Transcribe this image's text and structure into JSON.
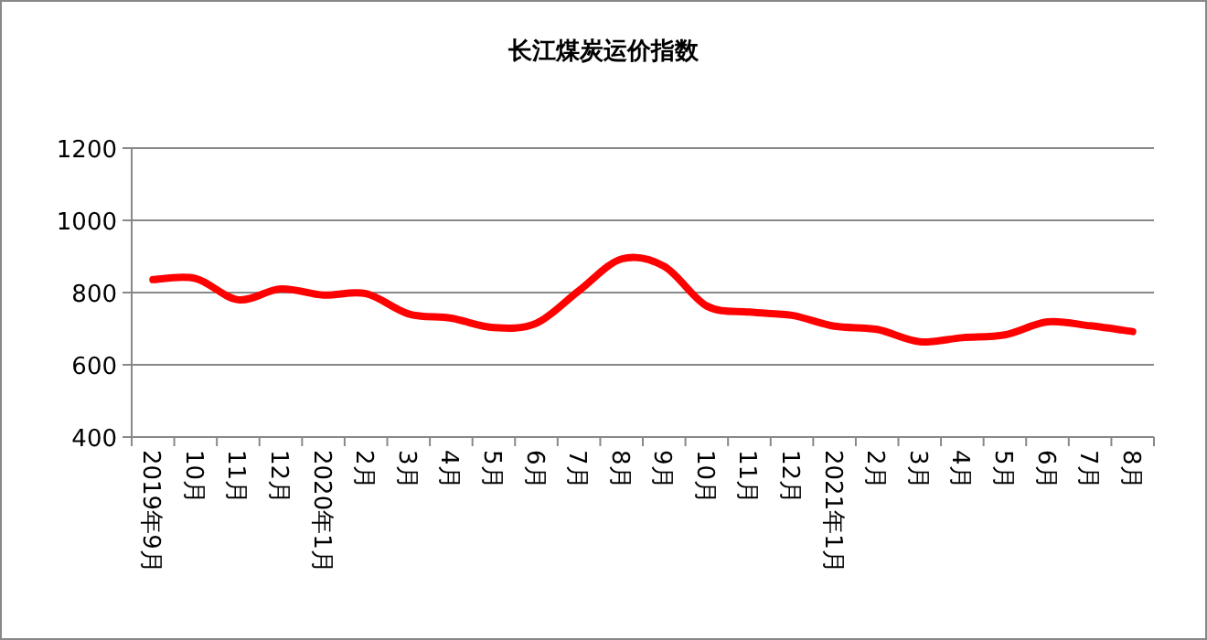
{
  "chart_data": {
    "type": "line",
    "title": "长江煤炭运价指数",
    "categories": [
      "2019年9月",
      "10月",
      "11月",
      "12月",
      "2020年1月",
      "2月",
      "3月",
      "4月",
      "5月",
      "6月",
      "7月",
      "8月",
      "9月",
      "10月",
      "11月",
      "12月",
      "2021年1月",
      "2月",
      "3月",
      "4月",
      "5月",
      "6月",
      "7月",
      "8月"
    ],
    "series": [
      {
        "color": "#ff0000",
        "values": [
          836,
          839,
          780,
          810,
          793,
          797,
          741,
          729,
          703,
          715,
          805,
          893,
          873,
          763,
          746,
          737,
          707,
          698,
          664,
          675,
          683,
          719,
          708,
          692
        ]
      }
    ],
    "ylim": [
      400,
      1200
    ],
    "yticks": [
      400,
      600,
      800,
      1000,
      1200
    ],
    "grid": "y",
    "marker": "none",
    "line_style": "solid"
  }
}
